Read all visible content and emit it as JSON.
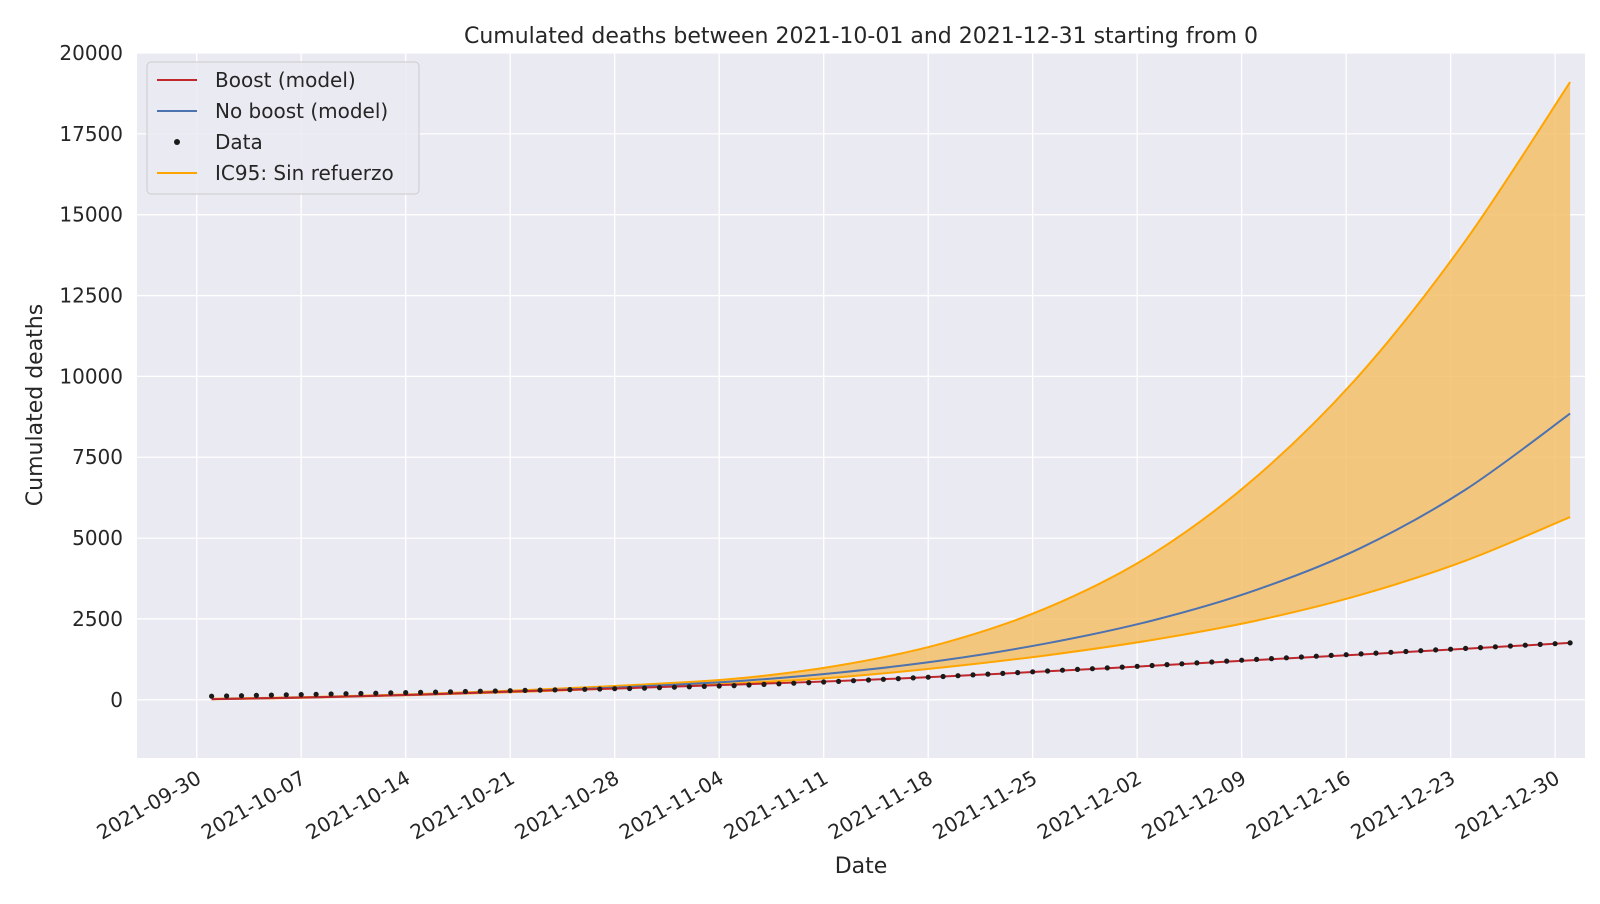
{
  "chart_data": {
    "type": "line",
    "title": "Cumulated deaths between 2021-10-01 and 2021-12-31 starting from 0",
    "xlabel": "Date",
    "ylabel": "Cumulated deaths",
    "x_axis": {
      "type": "date",
      "range": [
        "2021-09-26",
        "2022-01-01"
      ],
      "ticks": [
        "2021-09-30",
        "2021-10-07",
        "2021-10-14",
        "2021-10-21",
        "2021-10-28",
        "2021-11-04",
        "2021-11-11",
        "2021-11-18",
        "2021-11-25",
        "2021-12-02",
        "2021-12-09",
        "2021-12-16",
        "2021-12-23",
        "2021-12-30"
      ],
      "tick_rotation": 30
    },
    "y_axis": {
      "range": [
        -1800,
        20000
      ],
      "ticks": [
        0,
        2500,
        5000,
        7500,
        10000,
        12500,
        15000,
        17500,
        20000
      ]
    },
    "grid": true,
    "legend": "top-left",
    "legend_entries": [
      {
        "label": "Boost (model)",
        "kind": "line",
        "color": "#c0272d"
      },
      {
        "label": "No boost (model)",
        "kind": "line",
        "color": "#4c72b0"
      },
      {
        "label": "Data",
        "kind": "dot",
        "color": "#1a1a1a"
      },
      {
        "label": "IC95: Sin refuerzo",
        "kind": "line",
        "color": "#ffa500"
      }
    ],
    "colors": {
      "background": "#eaeaf2",
      "grid": "#ffffff",
      "boost": "#c0272d",
      "no_boost": "#4c72b0",
      "data": "#1a1a1a",
      "ci": "#ffa500",
      "ci_fill": "#f5c06a"
    },
    "series": [
      {
        "name": "No boost (model)",
        "kind": "line",
        "x": [
          "2021-10-01",
          "2021-10-08",
          "2021-10-15",
          "2021-10-22",
          "2021-10-29",
          "2021-11-05",
          "2021-11-12",
          "2021-11-19",
          "2021-11-26",
          "2021-12-03",
          "2021-12-10",
          "2021-12-17",
          "2021-12-24",
          "2021-12-31"
        ],
        "values": [
          20,
          80,
          160,
          270,
          400,
          570,
          840,
          1220,
          1750,
          2450,
          3400,
          4700,
          6500,
          8850
        ]
      },
      {
        "name": "IC95: Sin refuerzo",
        "kind": "band",
        "x": [
          "2021-10-01",
          "2021-10-08",
          "2021-10-15",
          "2021-10-22",
          "2021-10-29",
          "2021-11-05",
          "2021-11-12",
          "2021-11-19",
          "2021-11-26",
          "2021-12-03",
          "2021-12-10",
          "2021-12-17",
          "2021-12-24",
          "2021-12-31"
        ],
        "upper": [
          30,
          90,
          180,
          300,
          450,
          650,
          1060,
          1750,
          2850,
          4500,
          6900,
          10100,
          14200,
          19100
        ],
        "lower": [
          15,
          70,
          150,
          250,
          370,
          500,
          700,
          1000,
          1380,
          1850,
          2450,
          3250,
          4300,
          5650
        ]
      },
      {
        "name": "Boost (model)",
        "kind": "line",
        "x": [
          "2021-10-01",
          "2021-10-08",
          "2021-10-15",
          "2021-10-22",
          "2021-10-29",
          "2021-11-05",
          "2021-11-12",
          "2021-11-19",
          "2021-11-26",
          "2021-12-03",
          "2021-12-10",
          "2021-12-17",
          "2021-12-24",
          "2021-12-31"
        ],
        "values": [
          20,
          80,
          160,
          270,
          360,
          470,
          580,
          720,
          880,
          1050,
          1230,
          1400,
          1580,
          1760
        ]
      },
      {
        "name": "Data",
        "kind": "scatter",
        "start": "2021-10-01",
        "end": "2021-12-31",
        "step_days": 1,
        "anchors": {
          "x": [
            "2021-10-01",
            "2021-10-08",
            "2021-10-15",
            "2021-10-22",
            "2021-10-29",
            "2021-11-05",
            "2021-11-12",
            "2021-11-19",
            "2021-11-26",
            "2021-12-03",
            "2021-12-10",
            "2021-12-17",
            "2021-12-24",
            "2021-12-31"
          ],
          "values": [
            110,
            170,
            230,
            290,
            350,
            440,
            570,
            720,
            890,
            1060,
            1250,
            1420,
            1590,
            1760
          ]
        }
      }
    ]
  }
}
